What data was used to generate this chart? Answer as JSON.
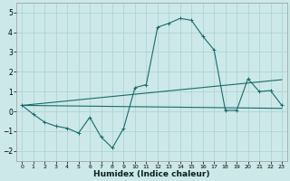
{
  "xlabel": "Humidex (Indice chaleur)",
  "xlim": [
    -0.5,
    23.5
  ],
  "ylim": [
    -2.5,
    5.5
  ],
  "xticks": [
    0,
    1,
    2,
    3,
    4,
    5,
    6,
    7,
    8,
    9,
    10,
    11,
    12,
    13,
    14,
    15,
    16,
    17,
    18,
    19,
    20,
    21,
    22,
    23
  ],
  "yticks": [
    -2,
    -1,
    0,
    1,
    2,
    3,
    4,
    5
  ],
  "background_color": "#cce8e8",
  "grid_color": "#aad0d0",
  "line_color": "#1a6b6b",
  "main_x": [
    0,
    1,
    2,
    3,
    4,
    5,
    6,
    7,
    8,
    9,
    10,
    11,
    12,
    13,
    14,
    15,
    16,
    17,
    18,
    19,
    20,
    21,
    22,
    23
  ],
  "main_y": [
    0.3,
    -0.15,
    -0.55,
    -0.75,
    -0.85,
    -1.1,
    -0.3,
    -1.3,
    -1.85,
    -0.85,
    1.2,
    1.35,
    4.25,
    4.45,
    4.7,
    4.6,
    3.8,
    3.1,
    0.05,
    0.05,
    1.65,
    1.0,
    1.05,
    0.3
  ],
  "trend1_x": [
    0,
    23
  ],
  "trend1_y": [
    0.3,
    0.15
  ],
  "trend2_x": [
    0,
    23
  ],
  "trend2_y": [
    0.3,
    1.6
  ]
}
